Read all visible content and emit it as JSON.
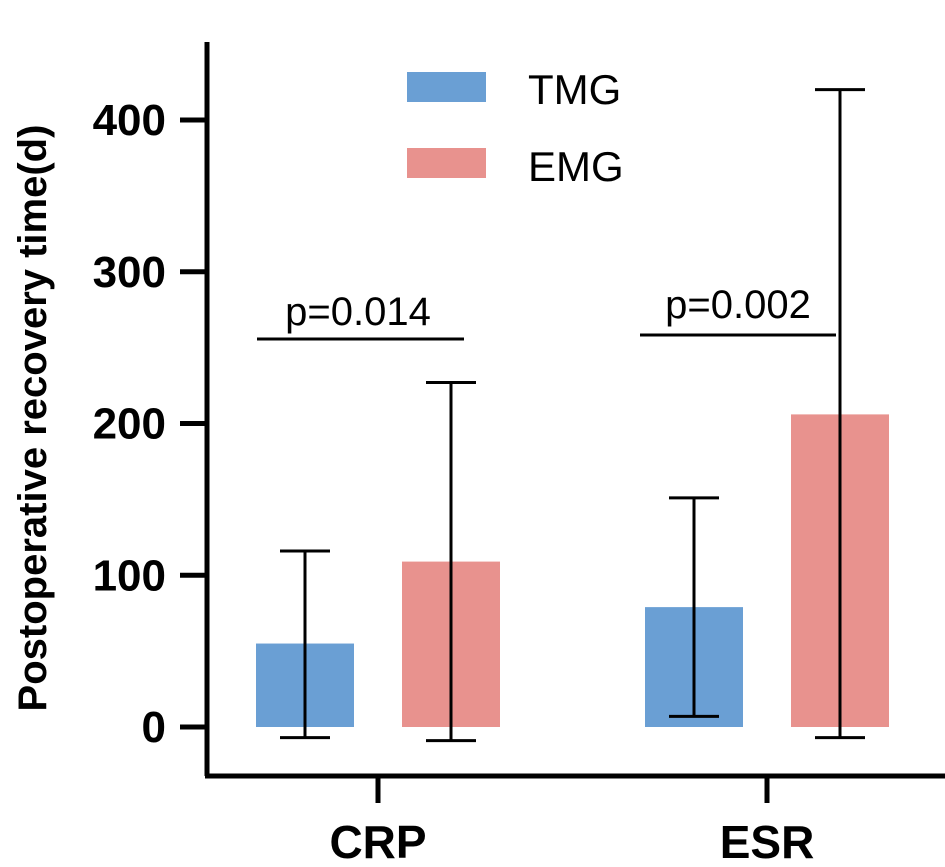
{
  "chart_data": {
    "type": "bar",
    "title": "",
    "xlabel": "",
    "ylabel": "Postoperative recovery time(d)",
    "ylim": [
      -30,
      450
    ],
    "yticks": [
      0,
      100,
      200,
      300,
      400
    ],
    "ytick_labels": [
      "0",
      "100",
      "200",
      "300",
      "400"
    ],
    "categories": [
      "CRP",
      "ESR"
    ],
    "series": [
      {
        "name": "TMG",
        "color": "#6a9fd4",
        "values": [
          55,
          79
        ],
        "err_low": [
          -7,
          7
        ],
        "err_high": [
          116,
          151
        ]
      },
      {
        "name": "EMG",
        "color": "#e8928e",
        "values": [
          109,
          206
        ],
        "err_low": [
          -9,
          -7
        ],
        "err_high": [
          227,
          420
        ]
      }
    ],
    "legend": {
      "position": "top-center",
      "entries": [
        "TMG",
        "EMG"
      ]
    },
    "annotations": [
      {
        "text": "p=0.014",
        "category": "CRP"
      },
      {
        "text": "p=0.002",
        "category": "ESR"
      }
    ]
  }
}
